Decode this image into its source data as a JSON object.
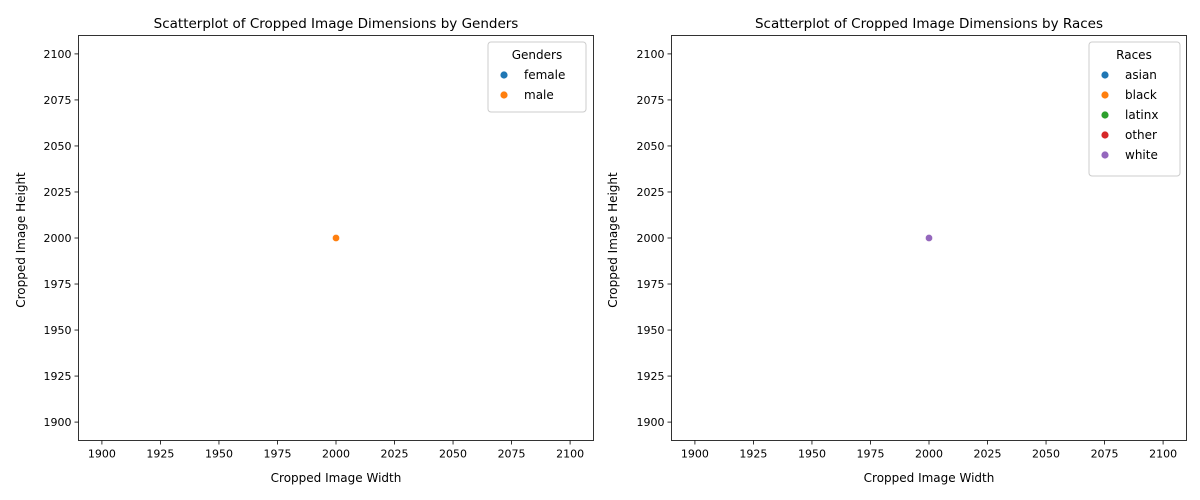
{
  "chart_data": [
    {
      "type": "scatter",
      "title": "Scatterplot of Cropped Image Dimensions by Genders",
      "xlabel": "Cropped Image Width",
      "ylabel": "Cropped Image Height",
      "xlim": [
        1890,
        2110
      ],
      "ylim": [
        1890,
        2110
      ],
      "xticks": [
        1900,
        1925,
        1950,
        1975,
        2000,
        2025,
        2050,
        2075,
        2100
      ],
      "yticks": [
        1900,
        1925,
        1950,
        1975,
        2000,
        2025,
        2050,
        2075,
        2100
      ],
      "grid": false,
      "legend": {
        "title": "Genders",
        "placement": "top-right",
        "entries": [
          {
            "label": "female",
            "color": "#1f77b4"
          },
          {
            "label": "male",
            "color": "#ff7f0e"
          }
        ]
      },
      "series": [
        {
          "name": "female",
          "color": "#1f77b4",
          "points": [
            [
              2000,
              2000
            ]
          ]
        },
        {
          "name": "male",
          "color": "#ff7f0e",
          "points": [
            [
              2000,
              2000
            ]
          ]
        }
      ]
    },
    {
      "type": "scatter",
      "title": "Scatterplot of Cropped Image Dimensions by Races",
      "xlabel": "Cropped Image Width",
      "ylabel": "Cropped Image Height",
      "xlim": [
        1890,
        2110
      ],
      "ylim": [
        1890,
        2110
      ],
      "xticks": [
        1900,
        1925,
        1950,
        1975,
        2000,
        2025,
        2050,
        2075,
        2100
      ],
      "yticks": [
        1900,
        1925,
        1950,
        1975,
        2000,
        2025,
        2050,
        2075,
        2100
      ],
      "grid": false,
      "legend": {
        "title": "Races",
        "placement": "top-right",
        "entries": [
          {
            "label": "asian",
            "color": "#1f77b4"
          },
          {
            "label": "black",
            "color": "#ff7f0e"
          },
          {
            "label": "latinx",
            "color": "#2ca02c"
          },
          {
            "label": "other",
            "color": "#d62728"
          },
          {
            "label": "white",
            "color": "#9467bd"
          }
        ]
      },
      "series": [
        {
          "name": "asian",
          "color": "#1f77b4",
          "points": [
            [
              2000,
              2000
            ]
          ]
        },
        {
          "name": "black",
          "color": "#ff7f0e",
          "points": [
            [
              2000,
              2000
            ]
          ]
        },
        {
          "name": "latinx",
          "color": "#2ca02c",
          "points": [
            [
              2000,
              2000
            ]
          ]
        },
        {
          "name": "other",
          "color": "#d62728",
          "points": [
            [
              2000,
              2000
            ]
          ]
        },
        {
          "name": "white",
          "color": "#9467bd",
          "points": [
            [
              2000,
              2000
            ]
          ]
        }
      ]
    }
  ]
}
